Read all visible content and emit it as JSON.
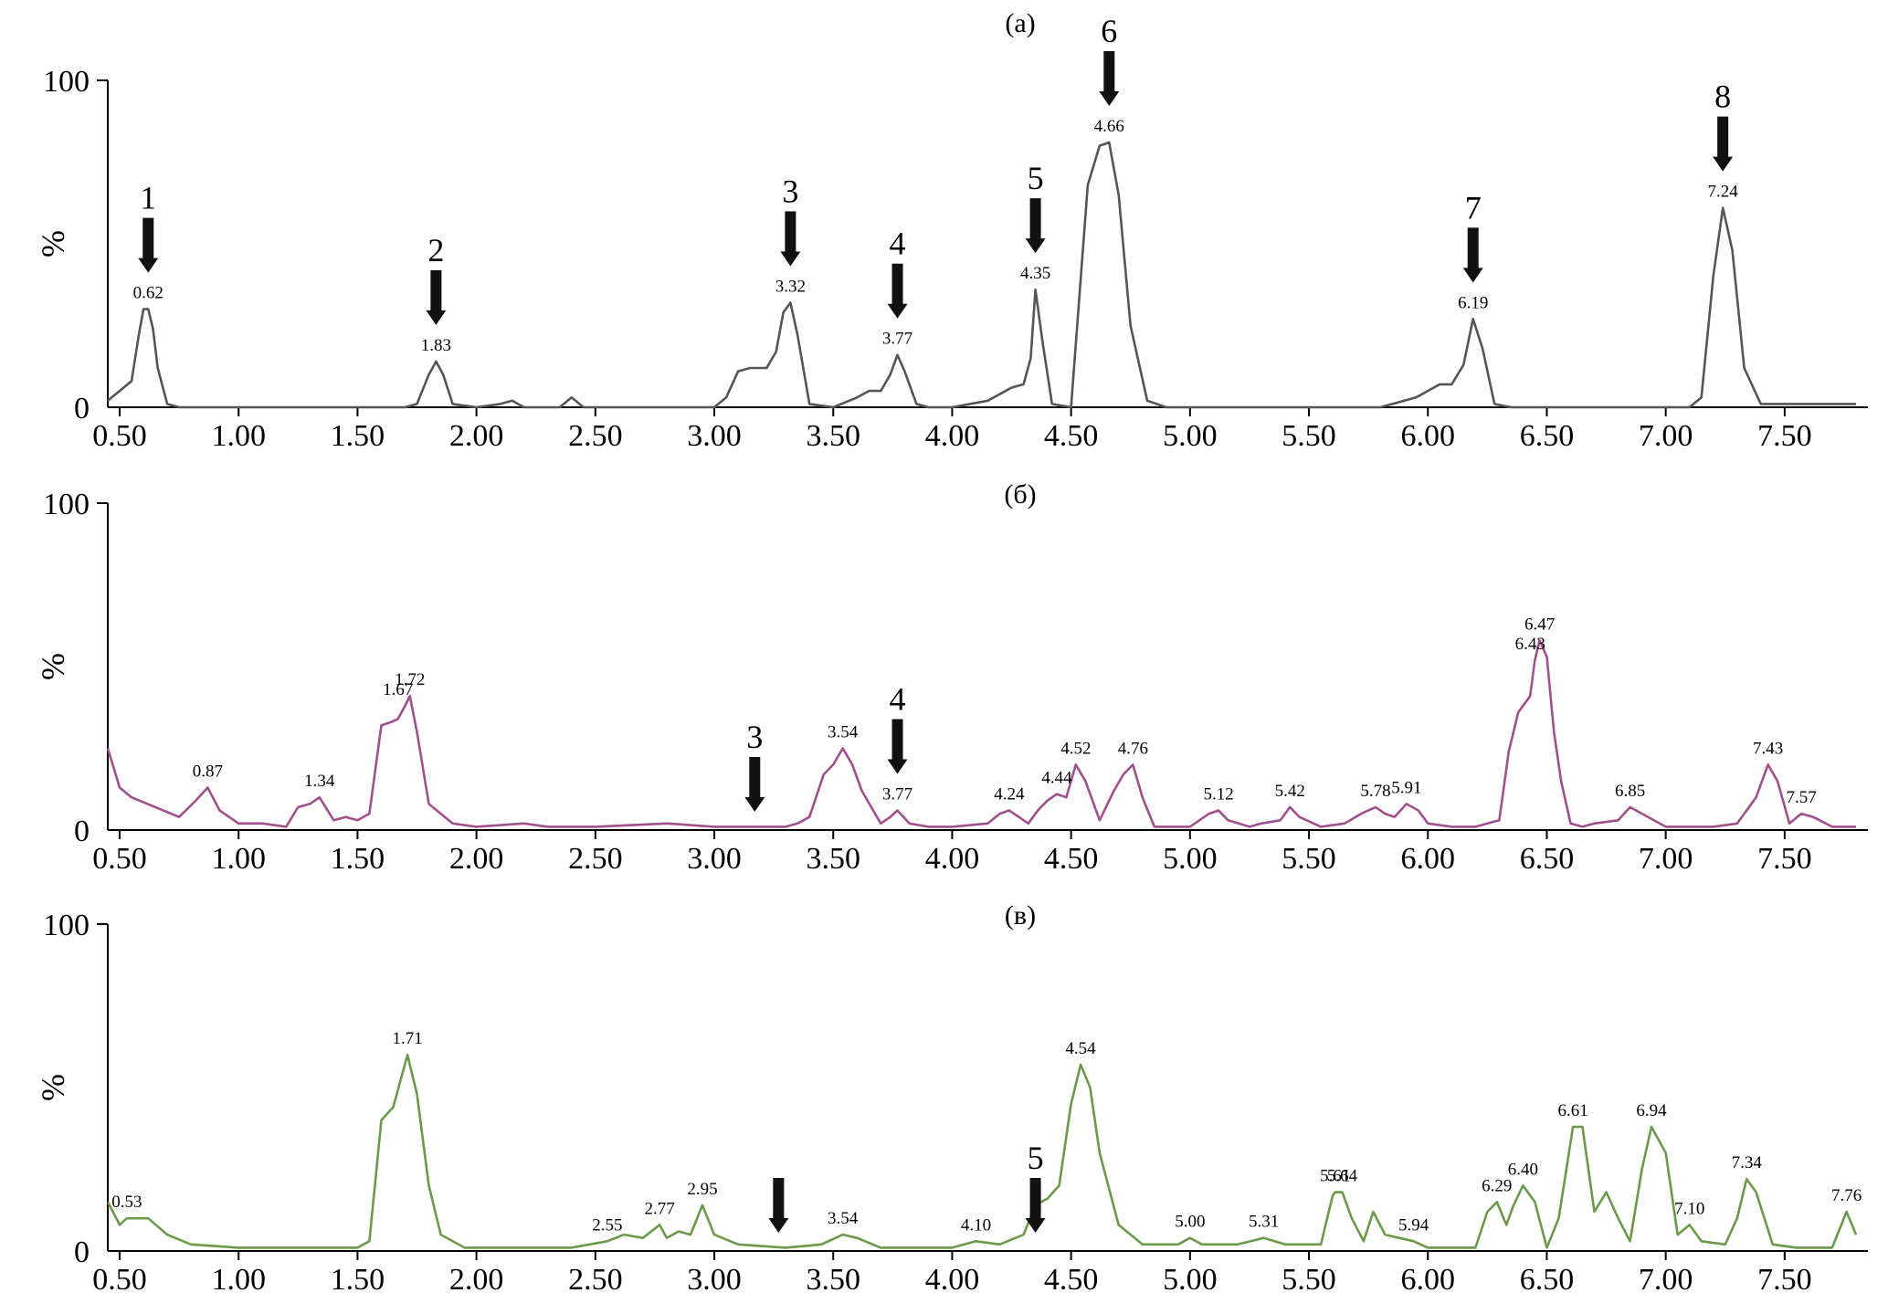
{
  "chart_data": [
    {
      "type": "line",
      "title": "(a)",
      "ylabel": "%",
      "xlim": [
        0.45,
        7.85
      ],
      "ylim": [
        0,
        100
      ],
      "xticks": [
        "0.50",
        "1.00",
        "1.50",
        "2.00",
        "2.50",
        "3.00",
        "3.50",
        "4.00",
        "4.50",
        "5.00",
        "5.50",
        "6.00",
        "6.50",
        "7.00",
        "7.50"
      ],
      "yticks": [
        "0",
        "100"
      ],
      "color": "#555555",
      "x": [
        0.45,
        0.55,
        0.58,
        0.6,
        0.62,
        0.64,
        0.66,
        0.7,
        0.75,
        1.7,
        1.75,
        1.8,
        1.83,
        1.86,
        1.9,
        2.0,
        2.1,
        2.15,
        2.2,
        2.35,
        2.4,
        2.45,
        3.0,
        3.05,
        3.1,
        3.15,
        3.22,
        3.26,
        3.29,
        3.32,
        3.35,
        3.4,
        3.5,
        3.6,
        3.65,
        3.7,
        3.74,
        3.77,
        3.8,
        3.85,
        3.9,
        4.0,
        4.15,
        4.25,
        4.3,
        4.33,
        4.35,
        4.38,
        4.42,
        4.5,
        4.57,
        4.62,
        4.66,
        4.7,
        4.75,
        4.82,
        4.9,
        5.0,
        5.8,
        5.95,
        6.05,
        6.1,
        6.15,
        6.19,
        6.23,
        6.28,
        6.35,
        6.5,
        7.0,
        7.1,
        7.15,
        7.2,
        7.24,
        7.28,
        7.33,
        7.4,
        7.8
      ],
      "values": [
        2,
        8,
        22,
        30,
        30,
        24,
        12,
        1,
        0,
        0,
        1,
        10,
        14,
        10,
        1,
        0,
        1,
        2,
        0,
        0,
        3,
        0,
        0,
        3,
        11,
        12,
        12,
        17,
        29,
        32,
        22,
        1,
        0,
        3,
        5,
        5,
        10,
        16,
        11,
        1,
        0,
        0,
        2,
        6,
        7,
        15,
        36,
        20,
        1,
        0,
        68,
        80,
        81,
        65,
        25,
        2,
        0,
        0,
        0,
        3,
        7,
        7,
        13,
        27,
        18,
        1,
        0,
        0,
        0,
        0,
        3,
        40,
        61,
        48,
        12,
        1,
        1
      ],
      "peak_labels": [
        {
          "x": 0.62,
          "y": 30,
          "text": "0.62"
        },
        {
          "x": 1.83,
          "y": 14,
          "text": "1.83"
        },
        {
          "x": 3.32,
          "y": 32,
          "text": "3.32"
        },
        {
          "x": 3.77,
          "y": 16,
          "text": "3.77"
        },
        {
          "x": 4.35,
          "y": 36,
          "text": "4.35"
        },
        {
          "x": 4.66,
          "y": 81,
          "text": "4.66"
        },
        {
          "x": 6.19,
          "y": 27,
          "text": "6.19"
        },
        {
          "x": 7.24,
          "y": 61,
          "text": "7.24"
        }
      ],
      "arrows": [
        {
          "x": 0.62,
          "label": "1"
        },
        {
          "x": 1.83,
          "label": "2"
        },
        {
          "x": 3.32,
          "label": "3"
        },
        {
          "x": 3.77,
          "label": "4"
        },
        {
          "x": 4.35,
          "label": "5"
        },
        {
          "x": 4.66,
          "label": "6"
        },
        {
          "x": 6.19,
          "label": "7"
        },
        {
          "x": 7.24,
          "label": "8"
        }
      ]
    },
    {
      "type": "line",
      "title": "(б)",
      "ylabel": "%",
      "xlim": [
        0.45,
        7.85
      ],
      "ylim": [
        0,
        100
      ],
      "xticks": [
        "0.50",
        "1.00",
        "1.50",
        "2.00",
        "2.50",
        "3.00",
        "3.50",
        "4.00",
        "4.50",
        "5.00",
        "5.50",
        "6.00",
        "6.50",
        "7.00",
        "7.50"
      ],
      "yticks": [
        "0",
        "100"
      ],
      "color": "#a0508c",
      "x": [
        0.45,
        0.5,
        0.55,
        0.65,
        0.75,
        0.82,
        0.87,
        0.92,
        1.0,
        1.1,
        1.2,
        1.25,
        1.3,
        1.34,
        1.4,
        1.45,
        1.5,
        1.55,
        1.6,
        1.64,
        1.67,
        1.7,
        1.72,
        1.75,
        1.8,
        1.9,
        2.0,
        2.2,
        2.3,
        2.5,
        2.8,
        3.0,
        3.2,
        3.3,
        3.35,
        3.4,
        3.46,
        3.5,
        3.54,
        3.58,
        3.62,
        3.7,
        3.74,
        3.77,
        3.82,
        3.9,
        4.0,
        4.15,
        4.2,
        4.24,
        4.28,
        4.32,
        4.36,
        4.4,
        4.44,
        4.48,
        4.52,
        4.56,
        4.62,
        4.68,
        4.72,
        4.76,
        4.8,
        4.85,
        5.0,
        5.08,
        5.12,
        5.16,
        5.25,
        5.3,
        5.38,
        5.42,
        5.46,
        5.55,
        5.65,
        5.72,
        5.78,
        5.82,
        5.86,
        5.91,
        5.96,
        6.0,
        6.1,
        6.2,
        6.3,
        6.34,
        6.38,
        6.43,
        6.45,
        6.47,
        6.5,
        6.53,
        6.56,
        6.6,
        6.65,
        6.7,
        6.8,
        6.85,
        6.9,
        7.0,
        7.2,
        7.3,
        7.38,
        7.43,
        7.47,
        7.52,
        7.57,
        7.62,
        7.7,
        7.8
      ],
      "values": [
        25,
        13,
        10,
        7,
        4,
        9,
        13,
        6,
        2,
        2,
        1,
        7,
        8,
        10,
        3,
        4,
        3,
        5,
        32,
        33,
        34,
        38,
        41,
        30,
        8,
        2,
        1,
        2,
        1,
        1,
        2,
        1,
        1,
        1,
        2,
        4,
        17,
        20,
        25,
        20,
        12,
        2,
        4,
        6,
        2,
        1,
        1,
        2,
        5,
        6,
        4,
        2,
        6,
        9,
        11,
        10,
        20,
        15,
        3,
        12,
        17,
        20,
        10,
        1,
        1,
        5,
        6,
        3,
        1,
        2,
        3,
        7,
        4,
        1,
        2,
        5,
        7,
        5,
        4,
        8,
        6,
        2,
        1,
        1,
        3,
        24,
        36,
        41,
        52,
        58,
        53,
        30,
        15,
        2,
        1,
        2,
        3,
        7,
        5,
        1,
        1,
        2,
        10,
        20,
        15,
        2,
        5,
        4,
        1,
        1
      ],
      "peak_labels": [
        {
          "x": 0.87,
          "y": 13,
          "text": "0.87"
        },
        {
          "x": 1.34,
          "y": 10,
          "text": "1.34"
        },
        {
          "x": 1.67,
          "y": 38,
          "text": "1.67"
        },
        {
          "x": 1.72,
          "y": 41,
          "text": "1.72"
        },
        {
          "x": 3.54,
          "y": 25,
          "text": "3.54"
        },
        {
          "x": 3.77,
          "y": 6,
          "text": "3.77"
        },
        {
          "x": 4.24,
          "y": 6,
          "text": "4.24"
        },
        {
          "x": 4.44,
          "y": 11,
          "text": "4.44"
        },
        {
          "x": 4.52,
          "y": 20,
          "text": "4.52"
        },
        {
          "x": 4.76,
          "y": 20,
          "text": "4.76"
        },
        {
          "x": 5.12,
          "y": 6,
          "text": "5.12"
        },
        {
          "x": 5.42,
          "y": 7,
          "text": "5.42"
        },
        {
          "x": 5.78,
          "y": 7,
          "text": "5.78"
        },
        {
          "x": 5.91,
          "y": 8,
          "text": "5.91"
        },
        {
          "x": 6.43,
          "y": 52,
          "text": "6.43"
        },
        {
          "x": 6.47,
          "y": 58,
          "text": "6.47"
        },
        {
          "x": 6.85,
          "y": 7,
          "text": "6.85"
        },
        {
          "x": 7.43,
          "y": 20,
          "text": "7.43"
        },
        {
          "x": 7.57,
          "y": 5,
          "text": "7.57"
        }
      ],
      "arrows": [
        {
          "x": 3.17,
          "label": "3"
        },
        {
          "x": 3.77,
          "label": "4"
        }
      ]
    },
    {
      "type": "line",
      "title": "(в)",
      "ylabel": "%",
      "xlim": [
        0.45,
        7.85
      ],
      "ylim": [
        0,
        100
      ],
      "xticks": [
        "0.50",
        "1.00",
        "1.50",
        "2.00",
        "2.50",
        "3.00",
        "3.50",
        "4.00",
        "4.50",
        "5.00",
        "5.50",
        "6.00",
        "6.50",
        "7.00",
        "7.50"
      ],
      "yticks": [
        "0",
        "100"
      ],
      "color": "#6a9a4a",
      "x": [
        0.45,
        0.5,
        0.53,
        0.56,
        0.62,
        0.7,
        0.8,
        1.0,
        1.5,
        1.55,
        1.6,
        1.65,
        1.71,
        1.75,
        1.8,
        1.85,
        1.95,
        2.0,
        2.4,
        2.55,
        2.62,
        2.7,
        2.77,
        2.8,
        2.85,
        2.9,
        2.95,
        3.0,
        3.1,
        3.3,
        3.45,
        3.54,
        3.6,
        3.7,
        4.0,
        4.1,
        4.2,
        4.3,
        4.35,
        4.4,
        4.45,
        4.5,
        4.54,
        4.58,
        4.62,
        4.7,
        4.8,
        4.95,
        5.0,
        5.05,
        5.2,
        5.31,
        5.4,
        5.55,
        5.6,
        5.61,
        5.64,
        5.68,
        5.73,
        5.77,
        5.82,
        5.94,
        6.0,
        6.2,
        6.25,
        6.29,
        6.33,
        6.36,
        6.4,
        6.45,
        6.5,
        6.55,
        6.61,
        6.65,
        6.7,
        6.75,
        6.8,
        6.85,
        6.9,
        6.94,
        7.0,
        7.05,
        7.1,
        7.15,
        7.25,
        7.3,
        7.34,
        7.38,
        7.45,
        7.55,
        7.7,
        7.76,
        7.8
      ],
      "values": [
        15,
        8,
        10,
        10,
        10,
        5,
        2,
        1,
        1,
        3,
        40,
        44,
        60,
        48,
        20,
        5,
        1,
        1,
        1,
        3,
        5,
        4,
        8,
        4,
        6,
        5,
        14,
        5,
        2,
        1,
        2,
        5,
        4,
        1,
        1,
        3,
        2,
        5,
        14,
        16,
        20,
        45,
        57,
        50,
        30,
        8,
        2,
        2,
        4,
        2,
        2,
        4,
        2,
        2,
        17,
        18,
        18,
        10,
        3,
        12,
        5,
        3,
        1,
        1,
        12,
        15,
        8,
        14,
        20,
        15,
        1,
        10,
        38,
        38,
        12,
        18,
        10,
        3,
        25,
        38,
        30,
        5,
        8,
        3,
        2,
        10,
        22,
        18,
        2,
        1,
        1,
        12,
        5
      ],
      "peak_labels": [
        {
          "x": 0.53,
          "y": 10,
          "text": "0.53"
        },
        {
          "x": 1.71,
          "y": 60,
          "text": "1.71"
        },
        {
          "x": 2.55,
          "y": 3,
          "text": "2.55"
        },
        {
          "x": 2.77,
          "y": 8,
          "text": "2.77"
        },
        {
          "x": 2.95,
          "y": 14,
          "text": "2.95"
        },
        {
          "x": 3.54,
          "y": 5,
          "text": "3.54"
        },
        {
          "x": 4.1,
          "y": 3,
          "text": "4.10"
        },
        {
          "x": 4.54,
          "y": 57,
          "text": "4.54"
        },
        {
          "x": 5.0,
          "y": 4,
          "text": "5.00"
        },
        {
          "x": 5.31,
          "y": 4,
          "text": "5.31"
        },
        {
          "x": 5.61,
          "y": 18,
          "text": "5.61"
        },
        {
          "x": 5.64,
          "y": 18,
          "text": "5.64"
        },
        {
          "x": 5.94,
          "y": 3,
          "text": "5.94"
        },
        {
          "x": 6.29,
          "y": 15,
          "text": "6.29"
        },
        {
          "x": 6.4,
          "y": 20,
          "text": "6.40"
        },
        {
          "x": 6.61,
          "y": 38,
          "text": "6.61"
        },
        {
          "x": 6.94,
          "y": 38,
          "text": "6.94"
        },
        {
          "x": 7.1,
          "y": 8,
          "text": "7.10"
        },
        {
          "x": 7.34,
          "y": 22,
          "text": "7.34"
        },
        {
          "x": 7.76,
          "y": 12,
          "text": "7.76"
        }
      ],
      "arrows": [
        {
          "x": 3.27,
          "label": ""
        },
        {
          "x": 4.35,
          "label": "5"
        }
      ]
    }
  ]
}
